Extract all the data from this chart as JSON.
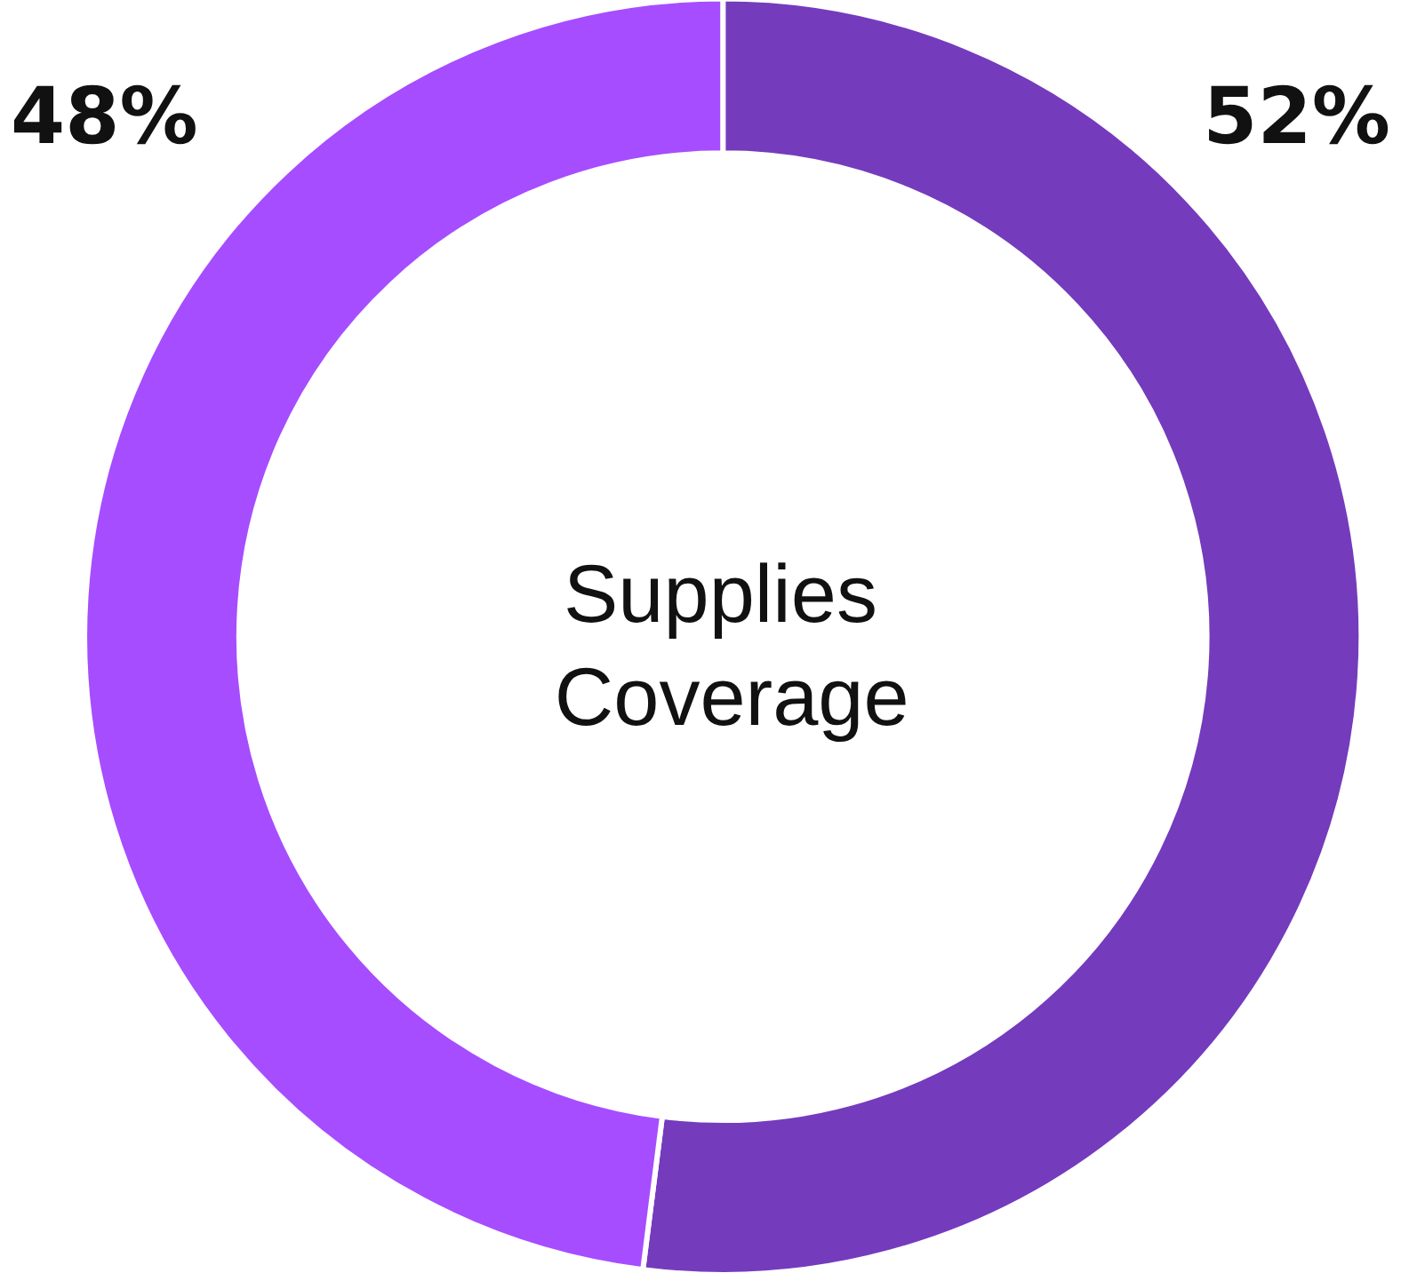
{
  "chart_data": {
    "type": "donut",
    "title": "Supplies Coverage",
    "categories": [
      null,
      null
    ],
    "values": [
      52,
      48
    ],
    "colors": [
      "#743bbd",
      "#a64dff"
    ],
    "value_labels": [
      "52%",
      "48%"
    ]
  }
}
